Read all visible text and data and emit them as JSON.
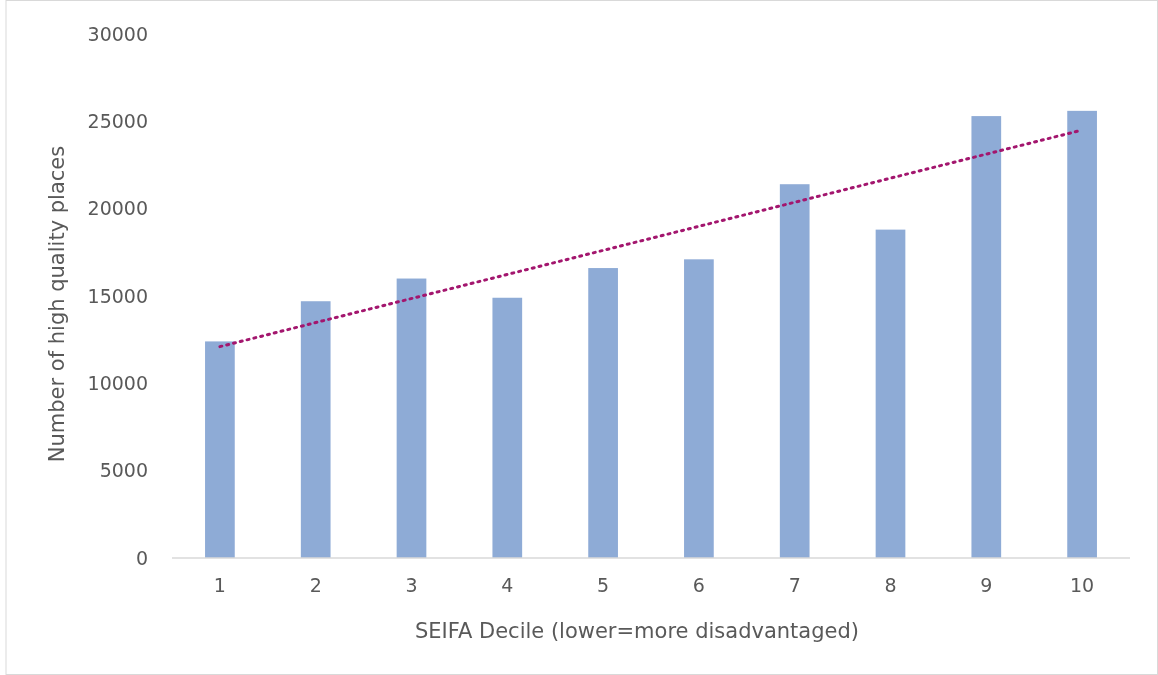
{
  "chart_data": {
    "type": "bar",
    "xlabel": "SEIFA Decile (lower=more disadvantaged)",
    "ylabel": "Number of high quality places",
    "categories": [
      "1",
      "2",
      "3",
      "4",
      "5",
      "6",
      "7",
      "8",
      "9",
      "10"
    ],
    "series": [
      {
        "color": "#8eabd6",
        "values": [
          12400,
          14700,
          16000,
          14900,
          16600,
          17100,
          21400,
          18800,
          25300,
          25600
        ]
      },
      {
        "type": "line",
        "color": "#a3166e",
        "line_style": "dotted",
        "x": [
          "1",
          "10"
        ],
        "values": [
          12100,
          24500
        ]
      }
    ],
    "ylim": [
      0,
      30000
    ],
    "yticks": [
      0,
      5000,
      10000,
      15000,
      20000,
      25000,
      30000
    ],
    "grid": false
  }
}
